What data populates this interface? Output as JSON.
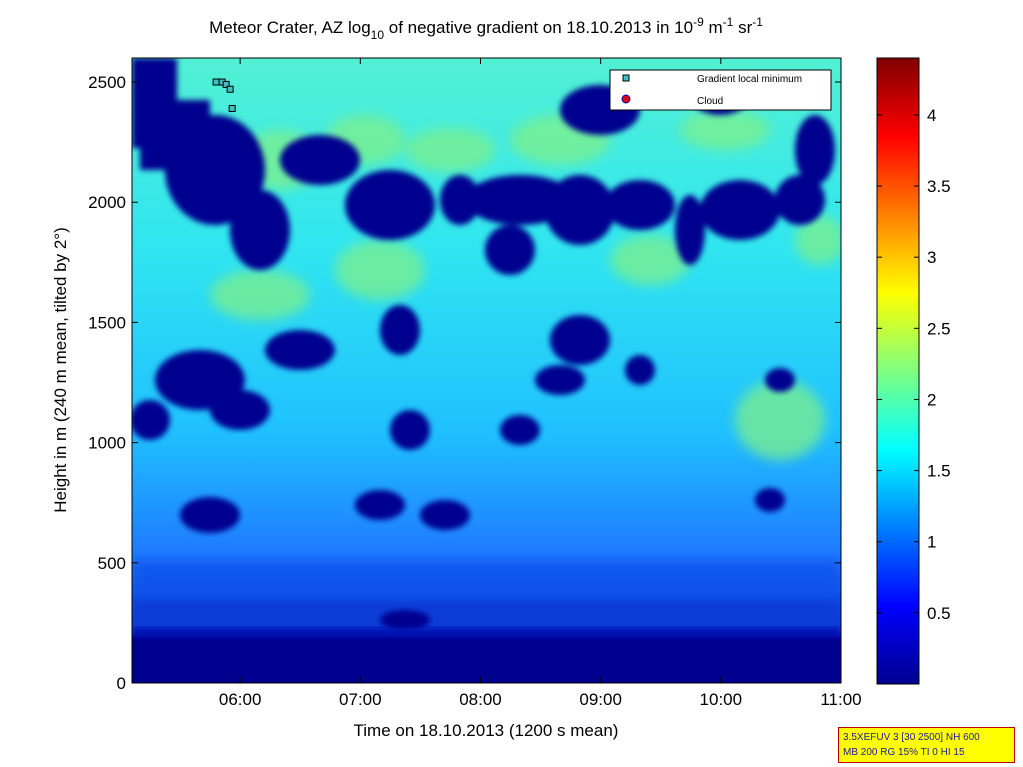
{
  "chart_data": {
    "type": "heatmap",
    "title_parts": {
      "pre": "Meteor Crater, AZ log",
      "sub": "10",
      "mid": " of negative gradient on 18.10.2013 in 10",
      "sup1": "-9",
      "unit1": " m",
      "sup2": "-1",
      "unit2": " sr",
      "sup3": "-1"
    },
    "xlabel": "Time on 18.10.2013 (1200 s mean)",
    "ylabel": "Height in m (240 m mean, tilted by 2°)",
    "x_ticks": [
      "06:00",
      "07:00",
      "08:00",
      "09:00",
      "10:00",
      "11:00"
    ],
    "x_tick_hours": [
      6,
      7,
      8,
      9,
      10,
      11
    ],
    "xlim_hours": [
      5.1,
      11.0
    ],
    "y_ticks": [
      "0",
      "500",
      "1000",
      "1500",
      "2000",
      "2500"
    ],
    "y_tick_values": [
      0,
      500,
      1000,
      1500,
      2000,
      2500
    ],
    "ylim": [
      0,
      2600
    ],
    "colorbar": {
      "ticks": [
        "0.5",
        "1",
        "1.5",
        "2",
        "2.5",
        "3",
        "3.5",
        "4"
      ],
      "tick_values": [
        0.5,
        1,
        1.5,
        2,
        2.5,
        3,
        3.5,
        4
      ],
      "range": [
        0,
        4.4
      ],
      "colormap": "jet"
    },
    "legend": {
      "placement": "top-right",
      "entries": [
        {
          "label": "Gradient local minimum",
          "marker": "square",
          "color": "#40c0c0"
        },
        {
          "label": "Cloud",
          "marker": "circle",
          "color": "#e00000"
        }
      ]
    },
    "gradient_minima": [
      {
        "time": "05:48",
        "height": 2500
      },
      {
        "time": "05:51",
        "height": 2500
      },
      {
        "time": "05:53",
        "height": 2490
      },
      {
        "time": "05:55",
        "height": 2470
      },
      {
        "time": "05:56",
        "height": 2390
      }
    ],
    "params": {
      "line1": "3.5XEFUV 3 [30 2500] NH 600",
      "line2": "MB 200 RG 15% TI 0 HI 15"
    }
  }
}
